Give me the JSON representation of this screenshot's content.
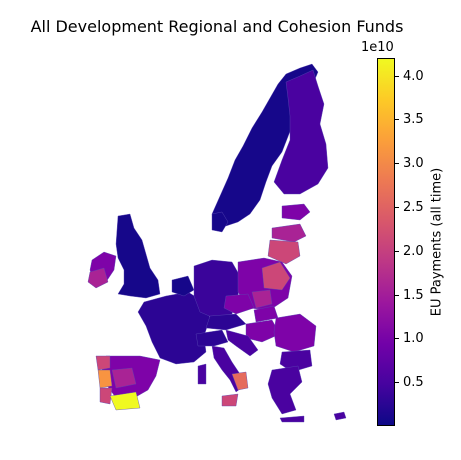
{
  "title": "All Development Regional and Cohesion Funds",
  "colorbar": {
    "label": "EU Payments (all time)",
    "offset_text": "1e10",
    "min": 0,
    "max": 4.2,
    "ticks": [
      {
        "label": "0.5",
        "value": 0.5
      },
      {
        "label": "1.0",
        "value": 1.0
      },
      {
        "label": "1.5",
        "value": 1.5
      },
      {
        "label": "2.0",
        "value": 2.0
      },
      {
        "label": "2.5",
        "value": 2.5
      },
      {
        "label": "3.0",
        "value": 3.0
      },
      {
        "label": "3.5",
        "value": 3.5
      },
      {
        "label": "4.0",
        "value": 4.0
      }
    ],
    "colormap": "plasma"
  },
  "map": {
    "type": "choropleth",
    "region": "European Union NUTS regions",
    "colors": {
      "low": "#16078a",
      "mid_low": "#4a02a0",
      "mid": "#7e03a8",
      "mid_high": "#a92395",
      "high": "#cc4778",
      "higher": "#e56b5d",
      "very_high": "#f89441",
      "max": "#f0f921"
    }
  }
}
